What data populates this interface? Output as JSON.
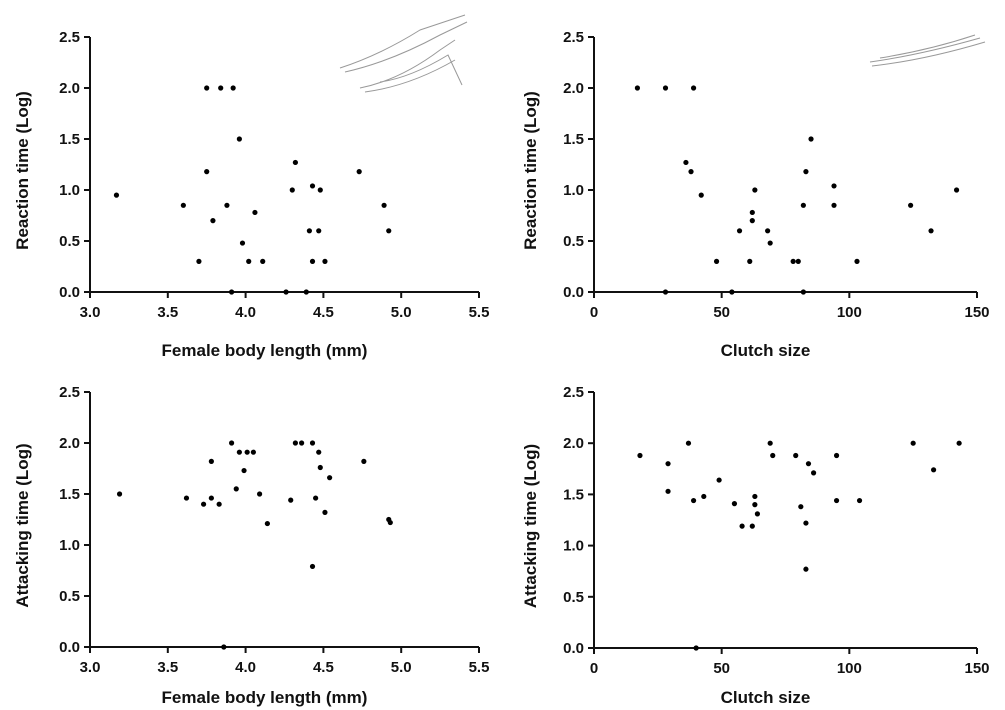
{
  "chart_data": [
    {
      "type": "scatter",
      "x_label": "Female body length (mm)",
      "y_label": "Reaction time (Log)",
      "color": "#000000",
      "xlim": [
        3,
        5.5
      ],
      "ylim": [
        0,
        2.5
      ],
      "xticks": [
        {
          "value": 3,
          "label": "3.0"
        },
        3.5,
        {
          "value": 4,
          "label": "4.0"
        },
        4.5,
        {
          "value": 5,
          "label": "5.0"
        },
        5.5
      ],
      "yticks": [
        {
          "value": 0,
          "label": "0.0"
        },
        0.5,
        {
          "value": 1,
          "label": "1.0"
        },
        1.5,
        {
          "value": 2,
          "label": "2.0"
        },
        2.5
      ],
      "x": [
        3.17,
        3.6,
        3.7,
        3.75,
        3.75,
        3.79,
        3.84,
        3.88,
        3.91,
        3.92,
        3.96,
        3.98,
        4.02,
        4.06,
        4.11,
        4.26,
        4.3,
        4.32,
        4.39,
        4.41,
        4.43,
        4.43,
        4.47,
        4.48,
        4.51,
        4.73,
        4.89,
        4.92
      ],
      "values": [
        0.95,
        0.85,
        0.3,
        2.0,
        1.18,
        0.7,
        2.0,
        0.85,
        0,
        2.0,
        1.5,
        0.48,
        0.3,
        0.78,
        0.3,
        0,
        1.0,
        1.27,
        0,
        0.6,
        1.04,
        0.3,
        0.6,
        1.0,
        0.3,
        1.18,
        0.85,
        0.6
      ]
    },
    {
      "type": "scatter",
      "x_label": "Clutch size",
      "y_label": "Reaction time (Log)",
      "color": "#000000",
      "xlim": [
        0,
        150
      ],
      "ylim": [
        0,
        2.5
      ],
      "xticks": [
        0,
        50,
        100,
        150
      ],
      "yticks": [
        {
          "value": 0,
          "label": "0.0"
        },
        0.5,
        {
          "value": 1,
          "label": "1.0"
        },
        1.5,
        {
          "value": 2,
          "label": "2.0"
        },
        2.5
      ],
      "x": [
        17,
        28,
        28,
        39,
        36,
        38,
        42,
        48,
        54,
        57,
        61,
        62,
        62,
        63,
        68,
        69,
        78,
        80,
        82,
        82,
        83,
        85,
        94,
        94,
        103,
        124,
        132,
        142
      ],
      "values": [
        2.0,
        2.0,
        0,
        2.0,
        1.27,
        1.18,
        0.95,
        0.3,
        0,
        0.6,
        0.3,
        0.78,
        0.7,
        1.0,
        0.6,
        0.48,
        0.3,
        0.3,
        0.85,
        0,
        1.18,
        1.5,
        1.04,
        0.85,
        0.3,
        0.85,
        0.6,
        1.0
      ]
    },
    {
      "type": "scatter",
      "x_label": "Female body length (mm)",
      "y_label": "Attacking time (Log)",
      "color": "#000000",
      "xlim": [
        3,
        5.5
      ],
      "ylim": [
        0,
        2.5
      ],
      "xticks": [
        {
          "value": 3,
          "label": "3.0"
        },
        3.5,
        {
          "value": 4,
          "label": "4.0"
        },
        4.5,
        {
          "value": 5,
          "label": "5.0"
        },
        5.5
      ],
      "yticks": [
        {
          "value": 0,
          "label": "0.0"
        },
        0.5,
        {
          "value": 1,
          "label": "1.0"
        },
        1.5,
        {
          "value": 2,
          "label": "2.0"
        },
        2.5
      ],
      "x": [
        3.19,
        3.62,
        3.73,
        3.78,
        3.78,
        3.83,
        3.86,
        3.91,
        3.94,
        3.96,
        3.99,
        4.01,
        4.05,
        4.09,
        4.14,
        4.29,
        4.32,
        4.36,
        4.43,
        4.43,
        4.45,
        4.47,
        4.48,
        4.51,
        4.54,
        4.76,
        4.92,
        4.93
      ],
      "values": [
        1.5,
        1.46,
        1.4,
        1.82,
        1.46,
        1.4,
        0,
        2.0,
        1.55,
        1.91,
        1.73,
        1.91,
        1.91,
        1.5,
        1.21,
        1.44,
        2.0,
        2.0,
        0.79,
        2.0,
        1.46,
        1.91,
        1.76,
        1.32,
        1.66,
        1.82,
        1.25,
        1.22
      ]
    },
    {
      "type": "scatter",
      "x_label": "Clutch size",
      "y_label": "Attacking time (Log)",
      "color": "#000000",
      "xlim": [
        0,
        150
      ],
      "ylim": [
        0,
        2.5
      ],
      "xticks": [
        0,
        50,
        100,
        150
      ],
      "yticks": [
        {
          "value": 0,
          "label": "0.0"
        },
        0.5,
        {
          "value": 1,
          "label": "1.0"
        },
        1.5,
        {
          "value": 2,
          "label": "2.0"
        },
        2.5
      ],
      "x": [
        18,
        29,
        29,
        37,
        39,
        40,
        43,
        49,
        55,
        58,
        63,
        63,
        62,
        64,
        69,
        70,
        79,
        81,
        83,
        83,
        84,
        86,
        95,
        95,
        104,
        125,
        133,
        143
      ],
      "values": [
        1.88,
        1.8,
        1.53,
        2.0,
        1.44,
        0,
        1.48,
        1.64,
        1.41,
        1.19,
        1.48,
        1.4,
        1.19,
        1.31,
        2.0,
        1.88,
        1.88,
        1.38,
        1.22,
        0.77,
        1.8,
        1.71,
        1.88,
        1.44,
        1.44,
        2.0,
        1.74,
        2.0
      ]
    }
  ]
}
